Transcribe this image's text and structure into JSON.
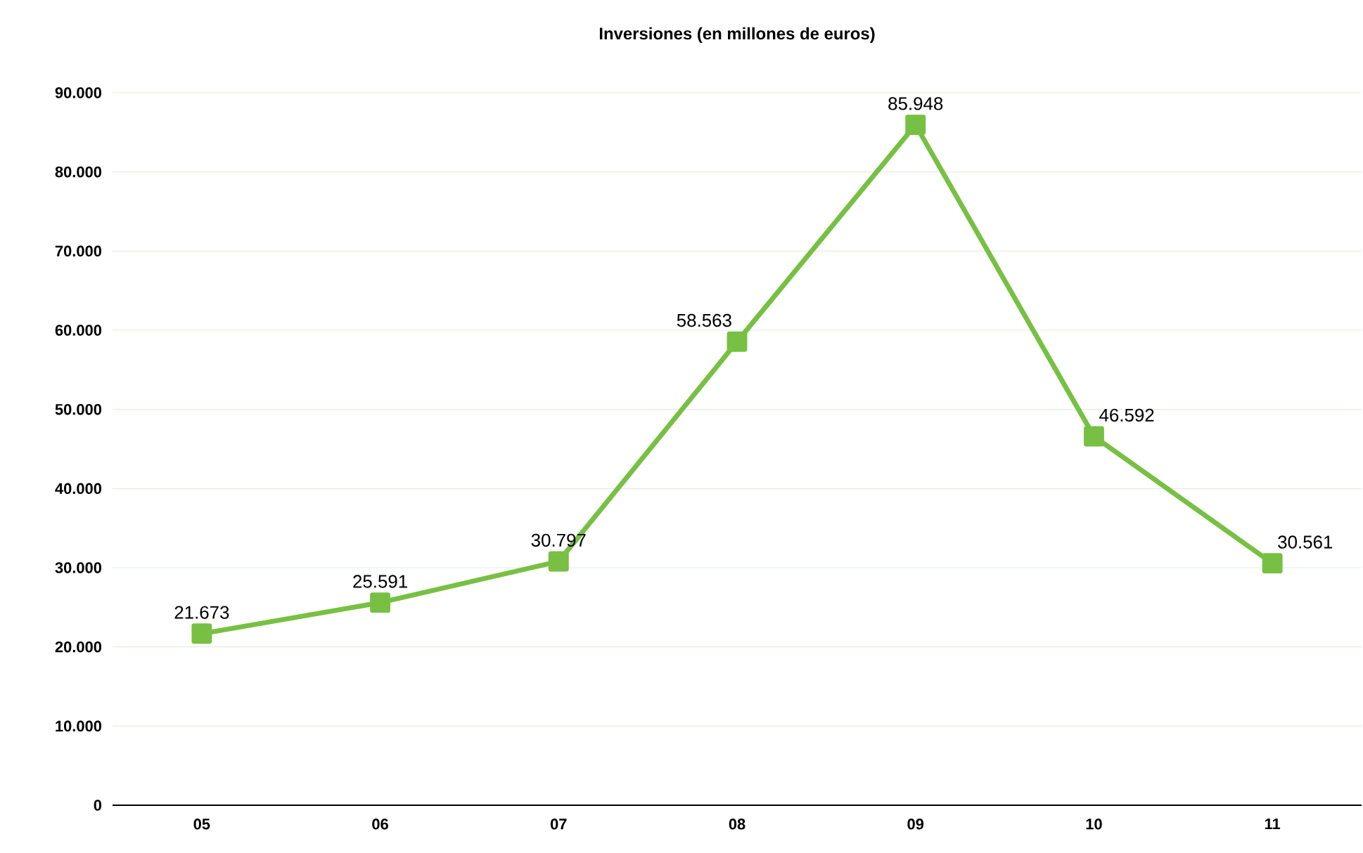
{
  "chart_data": {
    "type": "line",
    "title": "Inversiones (en millones de euros)",
    "categories": [
      "05",
      "06",
      "07",
      "08",
      "09",
      "10",
      "11"
    ],
    "series": [
      {
        "color": "#77c043",
        "values": [
          21673,
          25591,
          30797,
          58563,
          85948,
          46592,
          30561
        ],
        "value_labels": [
          "21.673",
          "25.591",
          "30.797",
          "58.563",
          "85.948",
          "46.592",
          "30.561"
        ]
      }
    ],
    "ylim": [
      0,
      90000
    ],
    "yticks": [
      {
        "value": 0,
        "label": "0"
      },
      {
        "value": 10000,
        "label": "10.000"
      },
      {
        "value": 20000,
        "label": "20.000"
      },
      {
        "value": 30000,
        "label": "30.000"
      },
      {
        "value": 40000,
        "label": "40.000"
      },
      {
        "value": 50000,
        "label": "50.000"
      },
      {
        "value": 60000,
        "label": "60.000"
      },
      {
        "value": 70000,
        "label": "70.000"
      },
      {
        "value": 80000,
        "label": "80.000"
      },
      {
        "value": 90000,
        "label": "90.000"
      }
    ],
    "grid": "y",
    "marker": "square",
    "line_style": "solid"
  }
}
